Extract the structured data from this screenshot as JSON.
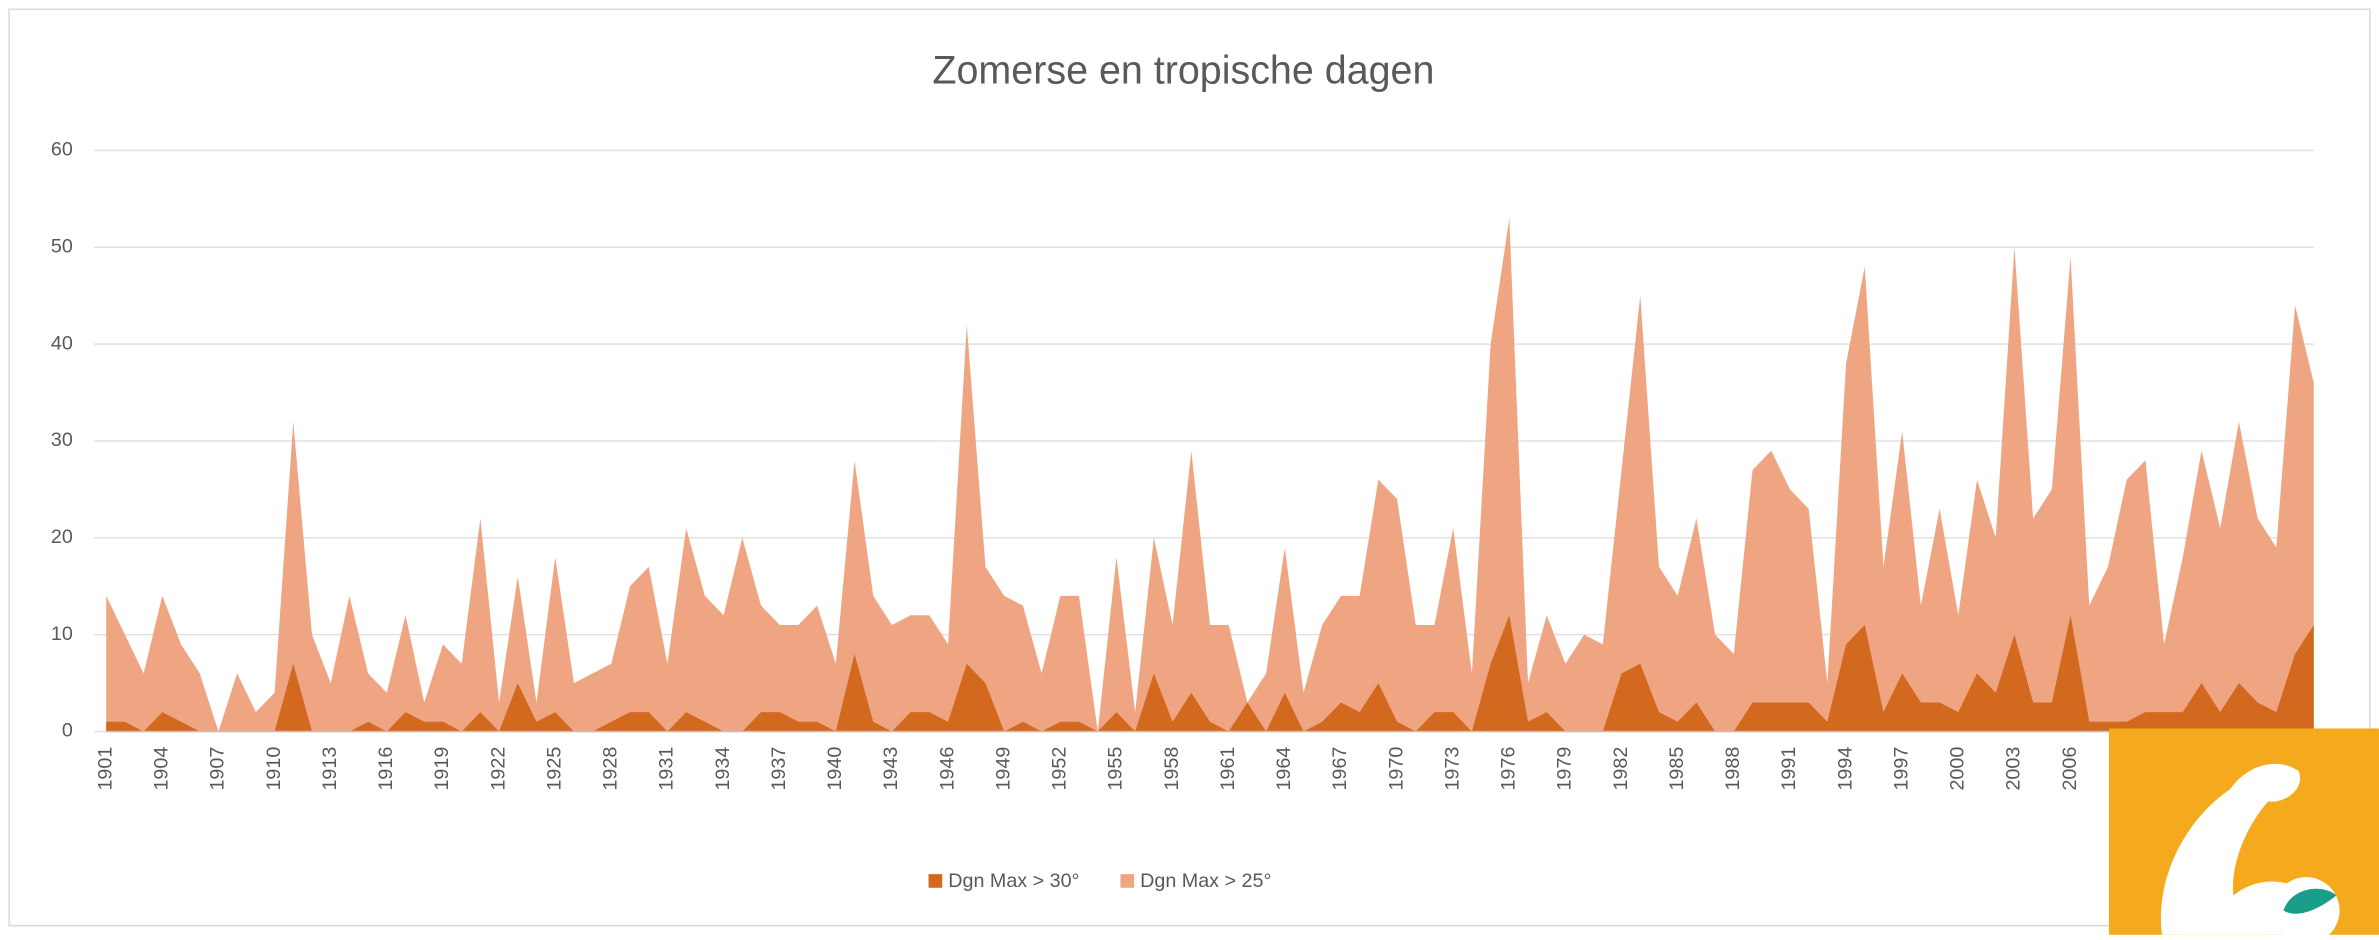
{
  "chart_data": {
    "type": "area",
    "title": "Zomerse en tropische dagen",
    "categories": [
      "1901",
      null,
      null,
      "1904",
      null,
      null,
      "1907",
      null,
      null,
      "1910",
      null,
      null,
      "1913",
      null,
      null,
      "1916",
      null,
      null,
      "1919",
      null,
      null,
      "1922",
      null,
      null,
      "1925",
      null,
      null,
      "1928",
      null,
      null,
      "1931",
      null,
      null,
      "1934",
      null,
      null,
      "1937",
      null,
      null,
      "1940",
      null,
      null,
      "1943",
      null,
      null,
      "1946",
      null,
      null,
      "1949",
      null,
      null,
      "1952",
      null,
      null,
      "1955",
      null,
      null,
      "1958",
      null,
      null,
      "1961",
      null,
      null,
      "1964",
      null,
      null,
      "1967",
      null,
      null,
      "1970",
      null,
      null,
      "1973",
      null,
      null,
      "1976",
      null,
      null,
      "1979",
      null,
      null,
      "1982",
      null,
      null,
      "1985",
      null,
      null,
      "1988",
      null,
      null,
      "1991",
      null,
      null,
      "1994",
      null,
      null,
      "1997",
      null,
      null,
      "2000",
      null,
      null,
      "2003",
      null,
      null,
      "2006",
      null,
      null,
      null,
      null,
      null,
      null,
      null,
      null,
      null,
      null,
      null,
      null,
      null
    ],
    "series": [
      {
        "name": "Dgn Max > 30°",
        "color": "#d2691e",
        "values": [
          1,
          1,
          0,
          2,
          1,
          0,
          0,
          0,
          0,
          0,
          7,
          0,
          0,
          0,
          1,
          0,
          2,
          1,
          1,
          0,
          2,
          0,
          5,
          1,
          2,
          0,
          0,
          1,
          2,
          2,
          0,
          2,
          1,
          0,
          0,
          2,
          2,
          1,
          1,
          0,
          8,
          1,
          0,
          2,
          2,
          1,
          7,
          5,
          0,
          1,
          0,
          1,
          1,
          0,
          2,
          0,
          6,
          1,
          4,
          1,
          0,
          3,
          0,
          4,
          0,
          1,
          3,
          2,
          5,
          1,
          0,
          2,
          2,
          0,
          7,
          12,
          1,
          2,
          0,
          0,
          0,
          6,
          7,
          2,
          1,
          3,
          0,
          0,
          3,
          3,
          3,
          3,
          1,
          9,
          11,
          2,
          6,
          3,
          3,
          2,
          6,
          4,
          10,
          3,
          3,
          12,
          1,
          1,
          1,
          2,
          2,
          2,
          5,
          2,
          5,
          3,
          2,
          8,
          11
        ]
      },
      {
        "name": "Dgn Max > 25°",
        "color": "#f0a582",
        "values": [
          14,
          10,
          6,
          14,
          9,
          6,
          0,
          6,
          2,
          4,
          32,
          10,
          5,
          14,
          6,
          4,
          12,
          3,
          9,
          7,
          22,
          3,
          16,
          3,
          18,
          5,
          6,
          7,
          15,
          17,
          7,
          21,
          14,
          12,
          20,
          13,
          11,
          11,
          13,
          7,
          28,
          14,
          11,
          12,
          12,
          9,
          42,
          17,
          14,
          13,
          6,
          14,
          14,
          0,
          18,
          2,
          20,
          11,
          29,
          11,
          11,
          3,
          6,
          19,
          4,
          11,
          14,
          14,
          26,
          24,
          11,
          11,
          21,
          6,
          40,
          53,
          5,
          12,
          7,
          10,
          9,
          27,
          45,
          17,
          14,
          22,
          10,
          8,
          27,
          29,
          25,
          23,
          5,
          38,
          48,
          17,
          31,
          13,
          23,
          12,
          26,
          20,
          50,
          22,
          25,
          49,
          13,
          17,
          26,
          28,
          9,
          18,
          29,
          21,
          32,
          22,
          19,
          44,
          36
        ]
      }
    ],
    "ylim": [
      0,
      60
    ],
    "yticks": [
      0,
      10,
      20,
      30,
      40,
      50,
      60
    ],
    "grid": true
  }
}
